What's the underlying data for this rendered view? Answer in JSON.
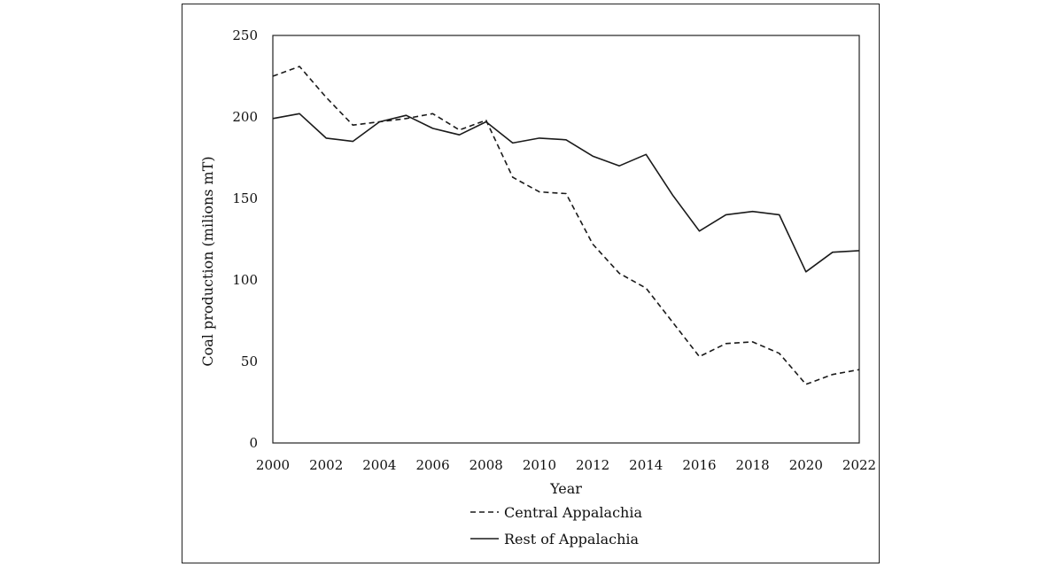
{
  "chart_data": {
    "type": "line",
    "xlabel": "Year",
    "ylabel": "Coal production (milions mT)",
    "ylim": [
      0,
      250
    ],
    "xlim": [
      2000,
      2022
    ],
    "yticks": [
      0,
      50,
      100,
      150,
      200,
      250
    ],
    "xticks": [
      2000,
      2002,
      2004,
      2006,
      2008,
      2010,
      2012,
      2014,
      2016,
      2018,
      2020,
      2022
    ],
    "x": [
      2000,
      2001,
      2002,
      2003,
      2004,
      2005,
      2006,
      2007,
      2008,
      2009,
      2010,
      2011,
      2012,
      2013,
      2014,
      2015,
      2016,
      2017,
      2018,
      2019,
      2020,
      2021,
      2022
    ],
    "series": [
      {
        "name": "Central Appalachia",
        "style": "dashed",
        "values": [
          225,
          231,
          212,
          195,
          197,
          199,
          202,
          192,
          198,
          163,
          154,
          153,
          122,
          104,
          95,
          74,
          53,
          61,
          62,
          55,
          36,
          42,
          45
        ]
      },
      {
        "name": "Rest of Appalachia",
        "style": "solid",
        "values": [
          199,
          202,
          187,
          185,
          197,
          201,
          193,
          189,
          197,
          184,
          187,
          186,
          176,
          170,
          177,
          152,
          130,
          140,
          142,
          140,
          105,
          117,
          118
        ]
      }
    ],
    "grid": false,
    "legend_position": "bottom"
  }
}
